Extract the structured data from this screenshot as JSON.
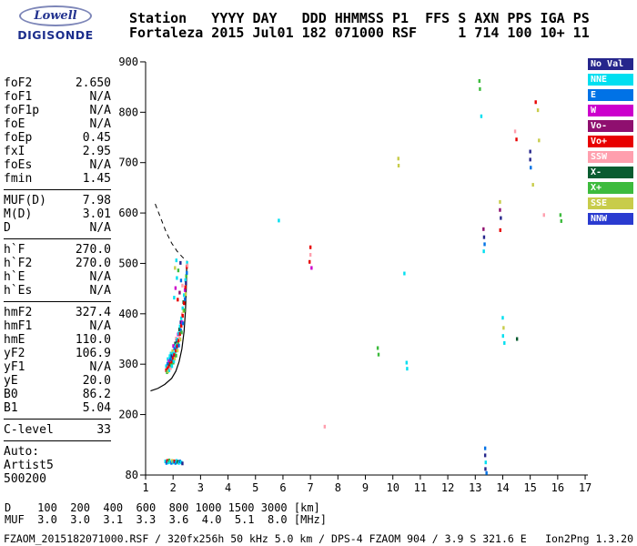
{
  "logo": {
    "name": "Lowell",
    "brand": "DIGISONDE"
  },
  "header": {
    "line1": "Station   YYYY DAY   DDD HHMMSS P1  FFS S AXN PPS IGA PS",
    "line2": "Fortaleza 2015 Jul01 182 071000 RSF     1 714 100 10+ 11"
  },
  "parameters": {
    "groups": [
      {
        "rows": [
          [
            "foF2",
            "2.650"
          ],
          [
            "foF1",
            "N/A"
          ],
          [
            "foF1p",
            "N/A"
          ],
          [
            "foE",
            "N/A"
          ],
          [
            "foEp",
            "0.45"
          ],
          [
            "fxI",
            "2.95"
          ],
          [
            "foEs",
            "N/A"
          ],
          [
            "fmin",
            "1.45"
          ]
        ]
      },
      {
        "rows": [
          [
            "MUF(D)",
            "7.98"
          ],
          [
            "M(D)",
            "3.01"
          ],
          [
            "D",
            "N/A"
          ]
        ]
      },
      {
        "rows": [
          [
            "h`F",
            "270.0"
          ],
          [
            "h`F2",
            "270.0"
          ],
          [
            "h`E",
            "N/A"
          ],
          [
            "h`Es",
            "N/A"
          ]
        ]
      },
      {
        "rows": [
          [
            "hmF2",
            "327.4"
          ],
          [
            "hmF1",
            "N/A"
          ],
          [
            "hmE",
            "110.0"
          ],
          [
            "yF2",
            "106.9"
          ],
          [
            "yF1",
            "N/A"
          ],
          [
            "yE",
            "20.0"
          ],
          [
            "B0",
            "86.2"
          ],
          [
            "B1",
            "5.04"
          ]
        ]
      },
      {
        "rows": [
          [
            "C-level",
            "33"
          ]
        ]
      },
      {
        "rows": [
          [
            "Auto:",
            ""
          ],
          [
            "Artist5",
            ""
          ],
          [
            "500200",
            ""
          ]
        ]
      }
    ]
  },
  "legend": {
    "items": [
      {
        "label": "No Val",
        "color": "#26268c"
      },
      {
        "label": "NNE",
        "color": "#00dff0"
      },
      {
        "label": "E",
        "color": "#0072e6"
      },
      {
        "label": "W",
        "color": "#cc00cc"
      },
      {
        "label": "Vo-",
        "color": "#8f0f6f"
      },
      {
        "label": "Vo+",
        "color": "#e80000"
      },
      {
        "label": "SSW",
        "color": "#ff9fae"
      },
      {
        "label": "X-",
        "color": "#0a5c30"
      },
      {
        "label": "X+",
        "color": "#3dbb3d"
      },
      {
        "label": "SSE",
        "color": "#c8cc4a"
      },
      {
        "label": "NNW",
        "color": "#2a3bd0"
      }
    ]
  },
  "chart_data": {
    "type": "scatter",
    "title": "",
    "xlabel": "",
    "ylabel": "",
    "x_unit": "MHz",
    "y_unit": "km",
    "xlim": [
      1,
      17
    ],
    "ylim": [
      80,
      900
    ],
    "x_ticks": [
      1,
      2,
      3,
      4,
      5,
      6,
      7,
      8,
      9,
      10,
      11,
      12,
      13,
      14,
      15,
      16,
      17
    ],
    "y_ticks": [
      900,
      800,
      700,
      600,
      500,
      400,
      300,
      200,
      80
    ],
    "grid": false,
    "legend_position": "right",
    "profile_solid": [
      [
        1.18,
        247
      ],
      [
        1.45,
        252
      ],
      [
        1.7,
        260
      ],
      [
        1.95,
        272
      ],
      [
        2.1,
        286
      ],
      [
        2.22,
        305
      ],
      [
        2.32,
        330
      ],
      [
        2.4,
        365
      ],
      [
        2.45,
        405
      ],
      [
        2.48,
        450
      ],
      [
        2.5,
        505
      ]
    ],
    "profile_dashed": [
      [
        1.35,
        618
      ],
      [
        1.55,
        590
      ],
      [
        1.75,
        562
      ],
      [
        1.95,
        540
      ],
      [
        2.15,
        524
      ],
      [
        2.35,
        512
      ],
      [
        2.45,
        507
      ]
    ],
    "points": [
      [
        1.72,
        107,
        "NNE"
      ],
      [
        1.76,
        104,
        "E"
      ],
      [
        1.79,
        108,
        "Vo+"
      ],
      [
        1.83,
        105,
        "NNE"
      ],
      [
        1.86,
        109,
        "X+"
      ],
      [
        1.9,
        106,
        "NNE"
      ],
      [
        1.94,
        104,
        "E"
      ],
      [
        1.97,
        108,
        "SSE"
      ],
      [
        2.01,
        105,
        "NNE"
      ],
      [
        2.05,
        107,
        "Vo+"
      ],
      [
        2.09,
        104,
        "E"
      ],
      [
        2.13,
        108,
        "NNE"
      ],
      [
        2.17,
        106,
        "X-"
      ],
      [
        2.21,
        104,
        "NNE"
      ],
      [
        2.25,
        107,
        "E"
      ],
      [
        2.3,
        105,
        "NNE"
      ],
      [
        2.34,
        103,
        "NoVal"
      ],
      [
        1.75,
        288,
        "Vo+"
      ],
      [
        1.75,
        296,
        "NNE"
      ],
      [
        1.78,
        284,
        "X+"
      ],
      [
        1.8,
        292,
        "Vo+"
      ],
      [
        1.8,
        301,
        "E"
      ],
      [
        1.81,
        310,
        "NNE"
      ],
      [
        1.82,
        286,
        "SSE"
      ],
      [
        1.85,
        296,
        "Vo+"
      ],
      [
        1.85,
        306,
        "W"
      ],
      [
        1.86,
        288,
        "NNE"
      ],
      [
        1.88,
        300,
        "X-"
      ],
      [
        1.88,
        316,
        "NNE"
      ],
      [
        1.9,
        301,
        "Vo+"
      ],
      [
        1.9,
        309,
        "E"
      ],
      [
        1.91,
        292,
        "SSW"
      ],
      [
        1.92,
        321,
        "NNE"
      ],
      [
        1.93,
        298,
        "X+"
      ],
      [
        1.95,
        305,
        "Vo+"
      ],
      [
        1.95,
        316,
        "NoVal"
      ],
      [
        1.96,
        296,
        "NNE"
      ],
      [
        1.98,
        310,
        "E"
      ],
      [
        1.98,
        326,
        "SSE"
      ],
      [
        2.0,
        312,
        "Vo+"
      ],
      [
        2.0,
        321,
        "NNE"
      ],
      [
        2.01,
        303,
        "X+"
      ],
      [
        2.01,
        336,
        "W"
      ],
      [
        2.03,
        317,
        "Vo-"
      ],
      [
        2.03,
        306,
        "NNE"
      ],
      [
        2.05,
        319,
        "Vo+"
      ],
      [
        2.05,
        331,
        "E"
      ],
      [
        2.06,
        311,
        "SSE"
      ],
      [
        2.08,
        325,
        "NNE"
      ],
      [
        2.08,
        341,
        "X-"
      ],
      [
        2.1,
        327,
        "Vo+"
      ],
      [
        2.1,
        337,
        "NNE"
      ],
      [
        2.11,
        317,
        "X+"
      ],
      [
        2.11,
        351,
        "SSW"
      ],
      [
        2.13,
        333,
        "E"
      ],
      [
        2.13,
        346,
        "NoVal"
      ],
      [
        2.15,
        336,
        "Vo+"
      ],
      [
        2.15,
        349,
        "NNE"
      ],
      [
        2.16,
        327,
        "SSE"
      ],
      [
        2.18,
        343,
        "X+"
      ],
      [
        2.18,
        359,
        "W"
      ],
      [
        2.2,
        347,
        "Vo+"
      ],
      [
        2.2,
        361,
        "NNE"
      ],
      [
        2.21,
        337,
        "E"
      ],
      [
        2.23,
        353,
        "SSW"
      ],
      [
        2.23,
        369,
        "X-"
      ],
      [
        2.25,
        360,
        "Vo+"
      ],
      [
        2.25,
        375,
        "NNE"
      ],
      [
        2.26,
        349,
        "SSE"
      ],
      [
        2.28,
        367,
        "E"
      ],
      [
        2.28,
        383,
        "NoVal"
      ],
      [
        2.3,
        376,
        "Vo+"
      ],
      [
        2.3,
        391,
        "NNE"
      ],
      [
        2.31,
        363,
        "X+"
      ],
      [
        2.33,
        383,
        "W"
      ],
      [
        2.33,
        399,
        "SSW"
      ],
      [
        2.35,
        396,
        "Vo+"
      ],
      [
        2.35,
        411,
        "NNE"
      ],
      [
        2.36,
        381,
        "E"
      ],
      [
        2.38,
        405,
        "SSE"
      ],
      [
        2.38,
        423,
        "X-"
      ],
      [
        2.4,
        421,
        "Vo+"
      ],
      [
        2.4,
        437,
        "NNE"
      ],
      [
        2.41,
        407,
        "X+"
      ],
      [
        2.43,
        429,
        "E"
      ],
      [
        2.43,
        447,
        "W"
      ],
      [
        2.45,
        453,
        "Vo+"
      ],
      [
        2.45,
        467,
        "NNE"
      ],
      [
        2.46,
        439,
        "SSE"
      ],
      [
        2.47,
        461,
        "NoVal"
      ],
      [
        2.48,
        475,
        "X+"
      ],
      [
        2.5,
        493,
        "Vo+"
      ],
      [
        2.5,
        481,
        "E"
      ],
      [
        2.51,
        501,
        "NNE"
      ],
      [
        2.52,
        496,
        "SSW"
      ],
      [
        2.04,
        432,
        "NNE"
      ],
      [
        2.09,
        451,
        "W"
      ],
      [
        2.14,
        471,
        "NNE"
      ],
      [
        2.07,
        491,
        "SSE"
      ],
      [
        2.19,
        486,
        "X+"
      ],
      [
        2.12,
        506,
        "NNE"
      ],
      [
        2.24,
        442,
        "Vo-"
      ],
      [
        2.29,
        466,
        "E"
      ],
      [
        2.17,
        428,
        "Vo+"
      ],
      [
        2.27,
        501,
        "NoVal"
      ],
      [
        2.34,
        456,
        "SSW"
      ],
      [
        5.85,
        585,
        "NNE"
      ],
      [
        7.0,
        532,
        "Vo+"
      ],
      [
        7.0,
        517,
        "SSW"
      ],
      [
        6.97,
        503,
        "Vo+"
      ],
      [
        7.04,
        491,
        "W"
      ],
      [
        7.52,
        176,
        "SSW"
      ],
      [
        9.45,
        332,
        "X+"
      ],
      [
        9.48,
        319,
        "X+"
      ],
      [
        10.2,
        708,
        "SSE"
      ],
      [
        10.21,
        694,
        "SSE"
      ],
      [
        10.42,
        480,
        "NNE"
      ],
      [
        10.5,
        303,
        "NNE"
      ],
      [
        10.52,
        291,
        "NNE"
      ],
      [
        13.15,
        862,
        "X+"
      ],
      [
        13.17,
        846,
        "X+"
      ],
      [
        13.22,
        792,
        "NNE"
      ],
      [
        13.3,
        568,
        "Vo-"
      ],
      [
        13.32,
        552,
        "NoVal"
      ],
      [
        13.34,
        538,
        "E"
      ],
      [
        13.31,
        524,
        "NNE"
      ],
      [
        13.36,
        133,
        "E"
      ],
      [
        13.36,
        119,
        "NoVal"
      ],
      [
        13.38,
        105,
        "NNE"
      ],
      [
        13.37,
        92,
        "NoVal"
      ],
      [
        13.41,
        84,
        "E"
      ],
      [
        13.9,
        622,
        "SSE"
      ],
      [
        13.9,
        606,
        "Vo-"
      ],
      [
        13.93,
        590,
        "NoVal"
      ],
      [
        13.91,
        566,
        "Vo+"
      ],
      [
        14.0,
        392,
        "NNE"
      ],
      [
        14.03,
        372,
        "SSE"
      ],
      [
        14.01,
        356,
        "NNE"
      ],
      [
        14.06,
        342,
        "NNE"
      ],
      [
        14.45,
        762,
        "SSW"
      ],
      [
        14.5,
        746,
        "Vo+"
      ],
      [
        14.52,
        350,
        "X-"
      ],
      [
        15.0,
        722,
        "NoVal"
      ],
      [
        15.0,
        706,
        "NoVal"
      ],
      [
        15.02,
        690,
        "E"
      ],
      [
        15.1,
        656,
        "SSE"
      ],
      [
        15.2,
        820,
        "Vo+"
      ],
      [
        15.28,
        804,
        "SSE"
      ],
      [
        15.32,
        744,
        "SSE"
      ],
      [
        15.5,
        596,
        "SSW"
      ],
      [
        16.1,
        596,
        "X+"
      ],
      [
        16.13,
        584,
        "X+"
      ]
    ]
  },
  "footer": {
    "d_line": "D    100  200  400  600  800 1000 1500 3000 [km]",
    "muf_line": "MUF  3.0  3.0  3.1  3.3  3.6  4.0  5.1  8.0 [MHz]",
    "status_left": "FZAOM_2015182071000.RSF / 320fx256h 50 kHz 5.0 km / DPS-4 FZAOM 904 / 3.9 S 321.6 E",
    "status_right": "Ion2Png 1.3.20"
  }
}
